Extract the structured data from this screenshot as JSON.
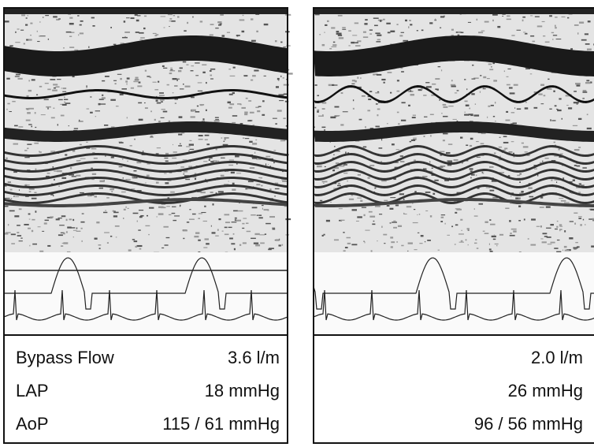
{
  "panels": [
    {
      "rows": [
        {
          "label": "Bypass Flow",
          "value": "3.6 l/m"
        },
        {
          "label": "LAP",
          "value": "18 mmHg"
        },
        {
          "label": "AoP",
          "value": "115 / 61 mmHg"
        }
      ]
    },
    {
      "rows": [
        {
          "value": "2.0 l/m"
        },
        {
          "value": "26 mmHg"
        },
        {
          "value": "96 / 56 mmHg"
        }
      ]
    }
  ]
}
